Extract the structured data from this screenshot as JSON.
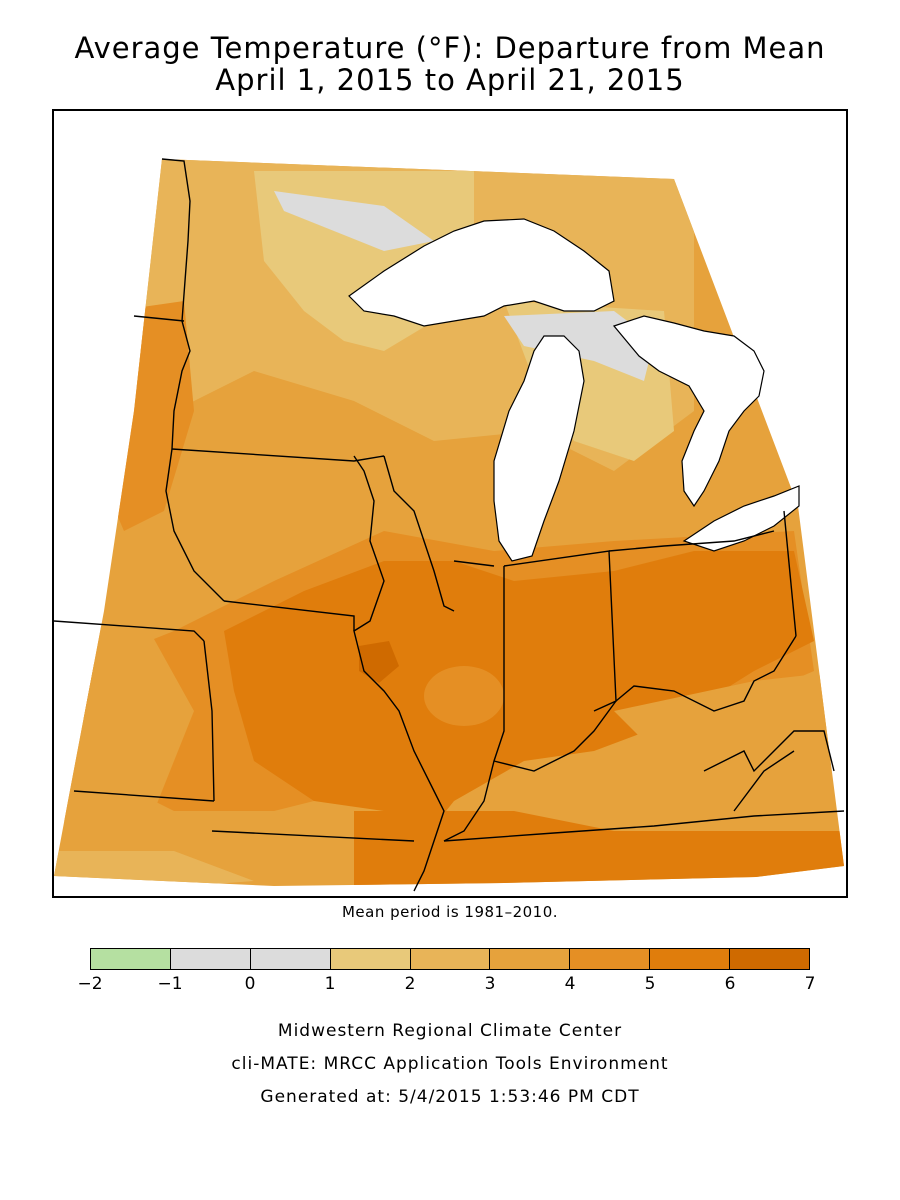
{
  "title": {
    "line1": "Average Temperature (°F): Departure from Mean",
    "line2": "April 1, 2015 to April 21, 2015"
  },
  "map": {
    "region": "Midwest",
    "variable": "Average Temperature departure from mean (°F)",
    "period": "April 1, 2015 to April 21, 2015",
    "dominant_range": "3 to 6 °F above normal",
    "max_area": "6 to 7 °F above normal (northeast Missouri / west-central Illinois)",
    "near_normal_area": "-1 to 1 °F (Lake Superior shore, northern Lake Michigan)"
  },
  "mean_note": "Mean period is 1981–2010.",
  "legend": {
    "bins": [
      {
        "from": -2,
        "to": -1,
        "color": "#b5e0a1"
      },
      {
        "from": -1,
        "to": 0,
        "color": "#dcdcdc"
      },
      {
        "from": 0,
        "to": 1,
        "color": "#dcdcdc"
      },
      {
        "from": 1,
        "to": 2,
        "color": "#e8c97a"
      },
      {
        "from": 2,
        "to": 3,
        "color": "#e8b458"
      },
      {
        "from": 3,
        "to": 4,
        "color": "#e6a23c"
      },
      {
        "from": 4,
        "to": 5,
        "color": "#e58f24"
      },
      {
        "from": 5,
        "to": 6,
        "color": "#e07d0c"
      },
      {
        "from": 6,
        "to": 7,
        "color": "#cf6a00"
      }
    ],
    "ticks": [
      "−2",
      "−1",
      "0",
      "1",
      "2",
      "3",
      "4",
      "5",
      "6",
      "7"
    ]
  },
  "credits": {
    "line1": "Midwestern Regional Climate Center",
    "line2": "cli-MATE: MRCC Application Tools Environment",
    "line3": "Generated at: 5/4/2015 1:53:46 PM CDT"
  }
}
